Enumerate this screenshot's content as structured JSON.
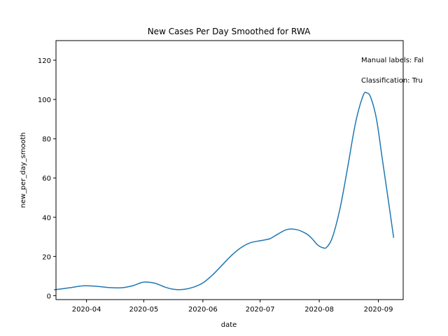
{
  "chart_data": {
    "type": "line",
    "title": "New Cases Per Day Smoothed for RWA",
    "xlabel": "date",
    "ylabel": "new_per_day_smooth",
    "x_domain": [
      "2020-03-16",
      "2020-09-14"
    ],
    "ylim": [
      -2,
      130
    ],
    "x_ticks": [
      {
        "date": "2020-04-01",
        "label": "2020-04"
      },
      {
        "date": "2020-05-01",
        "label": "2020-05"
      },
      {
        "date": "2020-06-01",
        "label": "2020-06"
      },
      {
        "date": "2020-07-01",
        "label": "2020-07"
      },
      {
        "date": "2020-08-01",
        "label": "2020-08"
      },
      {
        "date": "2020-09-01",
        "label": "2020-09"
      }
    ],
    "y_ticks": [
      0,
      20,
      40,
      60,
      80,
      100,
      120
    ],
    "grid": false,
    "legend": "none",
    "annotations": [
      "Manual labels: Fal",
      "Classification: Tru"
    ],
    "series": [
      {
        "color": "#1f77b4",
        "x": [
          "2020-03-15",
          "2020-03-23",
          "2020-03-30",
          "2020-04-06",
          "2020-04-12",
          "2020-04-19",
          "2020-04-25",
          "2020-05-01",
          "2020-05-07",
          "2020-05-12",
          "2020-05-17",
          "2020-05-22",
          "2020-05-27",
          "2020-06-01",
          "2020-06-06",
          "2020-06-11",
          "2020-06-16",
          "2020-06-21",
          "2020-06-26",
          "2020-07-01",
          "2020-07-06",
          "2020-07-10",
          "2020-07-15",
          "2020-07-20",
          "2020-07-25",
          "2020-07-28",
          "2020-07-31",
          "2020-08-03",
          "2020-08-05",
          "2020-08-08",
          "2020-08-12",
          "2020-08-16",
          "2020-08-20",
          "2020-08-24",
          "2020-08-26",
          "2020-08-28",
          "2020-08-31",
          "2020-09-03",
          "2020-09-06",
          "2020-09-09"
        ],
        "y": [
          3,
          4,
          5,
          4.8,
          4.2,
          4,
          5,
          6.9,
          6.3,
          4.4,
          3.2,
          3.2,
          4.3,
          6.5,
          10.5,
          15.5,
          20.5,
          24.5,
          27,
          28,
          29,
          31.2,
          33.7,
          33.7,
          31.7,
          29.3,
          26,
          24.4,
          24.8,
          30,
          45,
          66,
          88,
          102,
          103.3,
          101,
          90,
          70,
          50,
          29.5
        ]
      }
    ]
  }
}
